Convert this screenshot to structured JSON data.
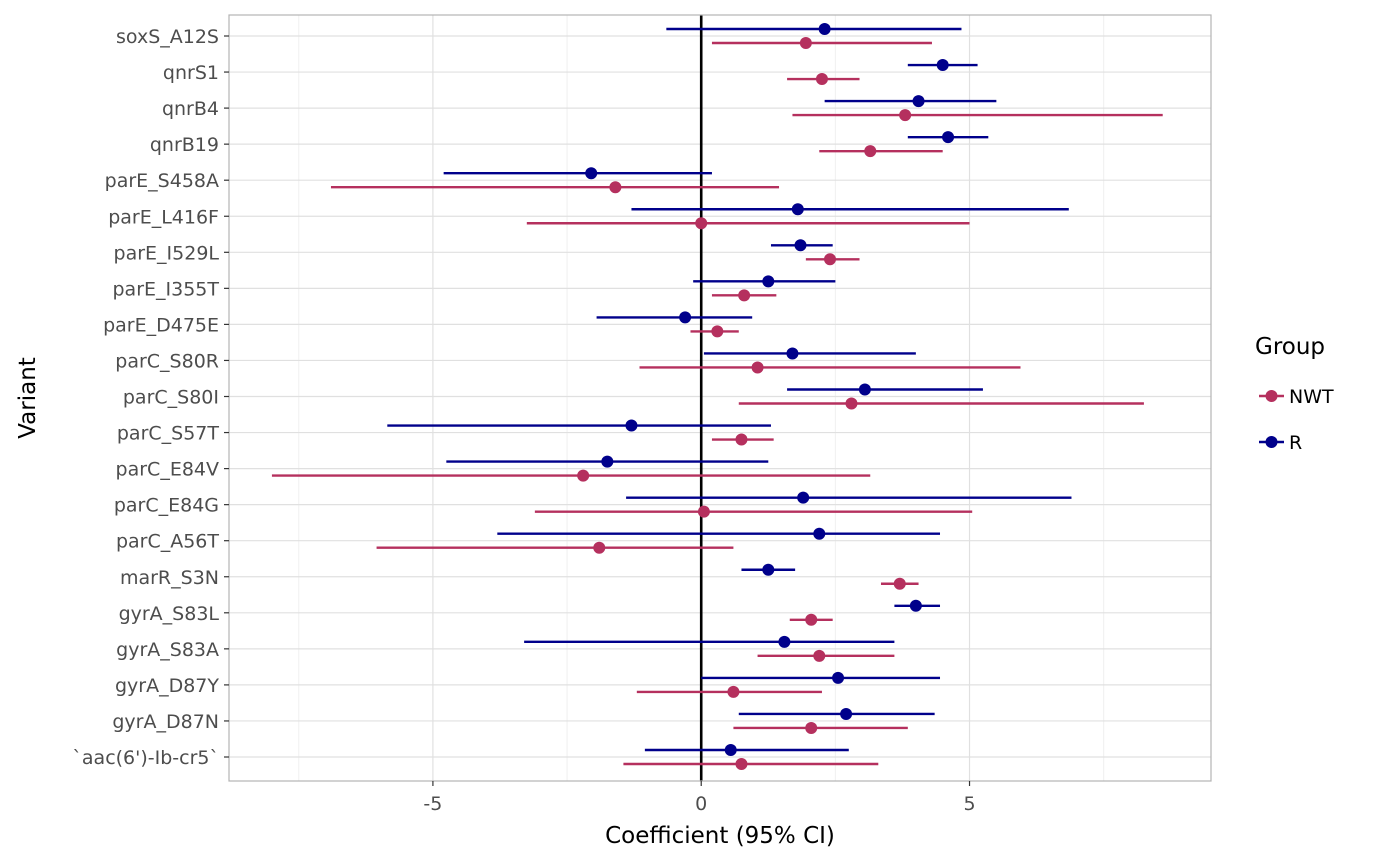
{
  "chart_data": {
    "type": "scatter",
    "xlabel": "Coefficient (95% CI)",
    "ylabel": "Variant",
    "xlim": [
      -8.8,
      9.5
    ],
    "x_ticks": [
      -5,
      0,
      5
    ],
    "x_tick_labels": [
      "-5",
      "0",
      "5"
    ],
    "reference_line_x": 0,
    "grid": true,
    "legend": {
      "title": "Group",
      "position": "right"
    },
    "categories": [
      "soxS_A12S",
      "qnrS1",
      "qnrB4",
      "qnrB19",
      "parE_S458A",
      "parE_L416F",
      "parE_I529L",
      "parE_I355T",
      "parE_D475E",
      "parC_S80R",
      "parC_S80I",
      "parC_S57T",
      "parC_E84V",
      "parC_E84G",
      "parC_A56T",
      "marR_S3N",
      "gyrA_S83L",
      "gyrA_S83A",
      "gyrA_D87Y",
      "gyrA_D87N",
      "`aac(6')-Ib-cr5`"
    ],
    "series": [
      {
        "name": "NWT",
        "color": "#B5305E",
        "estimate": [
          1.95,
          2.25,
          3.8,
          3.15,
          -1.6,
          0.0,
          2.4,
          0.8,
          0.3,
          1.05,
          2.8,
          0.75,
          -2.2,
          0.05,
          -1.9,
          3.7,
          2.05,
          2.2,
          0.6,
          2.05,
          0.75
        ],
        "lower": [
          0.2,
          1.6,
          1.7,
          2.2,
          -6.9,
          -3.25,
          1.95,
          0.2,
          -0.2,
          -1.15,
          0.7,
          0.2,
          -8.0,
          -3.1,
          -6.05,
          3.35,
          1.65,
          1.05,
          -1.2,
          0.6,
          -1.45
        ],
        "upper": [
          4.3,
          2.95,
          8.6,
          4.5,
          1.45,
          5.0,
          2.95,
          1.4,
          0.7,
          5.95,
          8.25,
          1.35,
          3.15,
          5.05,
          0.6,
          4.05,
          2.45,
          3.6,
          2.25,
          3.85,
          3.3
        ]
      },
      {
        "name": "R",
        "color": "#00008B",
        "estimate": [
          2.3,
          4.5,
          4.05,
          4.6,
          -2.05,
          1.8,
          1.85,
          1.25,
          -0.3,
          1.7,
          3.05,
          -1.3,
          -1.75,
          1.9,
          2.2,
          1.25,
          4.0,
          1.55,
          2.55,
          2.7,
          0.55
        ],
        "lower": [
          -0.65,
          3.85,
          2.3,
          3.85,
          -4.8,
          -1.3,
          1.3,
          -0.15,
          -1.95,
          0.05,
          1.6,
          -5.85,
          -4.75,
          -1.4,
          -3.8,
          0.75,
          3.6,
          -3.3,
          0.0,
          0.7,
          -1.05
        ],
        "upper": [
          4.85,
          5.15,
          5.5,
          5.35,
          0.2,
          6.85,
          2.45,
          2.5,
          0.95,
          4.0,
          5.25,
          1.3,
          1.25,
          6.9,
          4.45,
          1.75,
          4.45,
          3.6,
          4.45,
          4.35,
          2.75
        ]
      }
    ]
  }
}
